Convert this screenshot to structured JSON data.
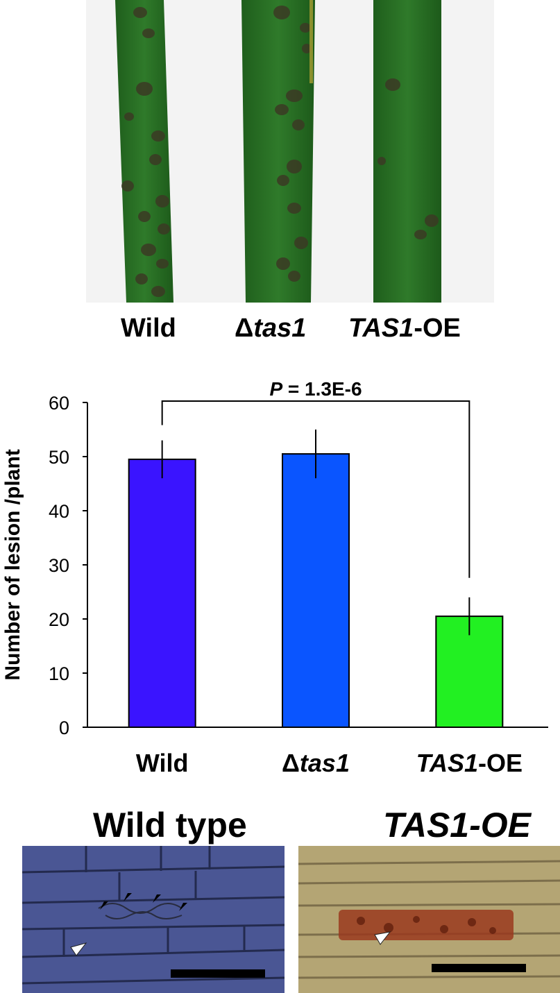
{
  "leaf_photos": {
    "labels": [
      {
        "prefix": "",
        "italic": "",
        "plain": "Wild"
      },
      {
        "prefix": "Δ",
        "italic": "tas1",
        "plain": ""
      },
      {
        "prefix": "",
        "italic": "TAS1",
        "plain": "-OE"
      }
    ]
  },
  "chart_data": {
    "type": "bar",
    "categories": [
      "Wild",
      "Δtas1",
      "TAS1-OE"
    ],
    "category_parts": [
      {
        "prefix": "",
        "italic": "",
        "plain": "Wild"
      },
      {
        "prefix": "Δ",
        "italic": "tas1",
        "plain": ""
      },
      {
        "prefix": "",
        "italic": "TAS1",
        "plain": "-OE"
      }
    ],
    "values": [
      49.5,
      50.5,
      20.5
    ],
    "errors": [
      3.5,
      4.5,
      3.5
    ],
    "bar_colors": [
      "#3a14ff",
      "#0a55ff",
      "#22f022"
    ],
    "ylabel": "Number of lesion /plant",
    "ylim": [
      0,
      60
    ],
    "yticks": [
      0,
      10,
      20,
      30,
      40,
      50,
      60
    ],
    "annotation": {
      "italic": "P",
      "text": " = 1.3E-6",
      "between": [
        0,
        2
      ]
    },
    "grid": false
  },
  "micrographs": {
    "left_title": "Wild type",
    "right_title": "TAS1-OE"
  }
}
